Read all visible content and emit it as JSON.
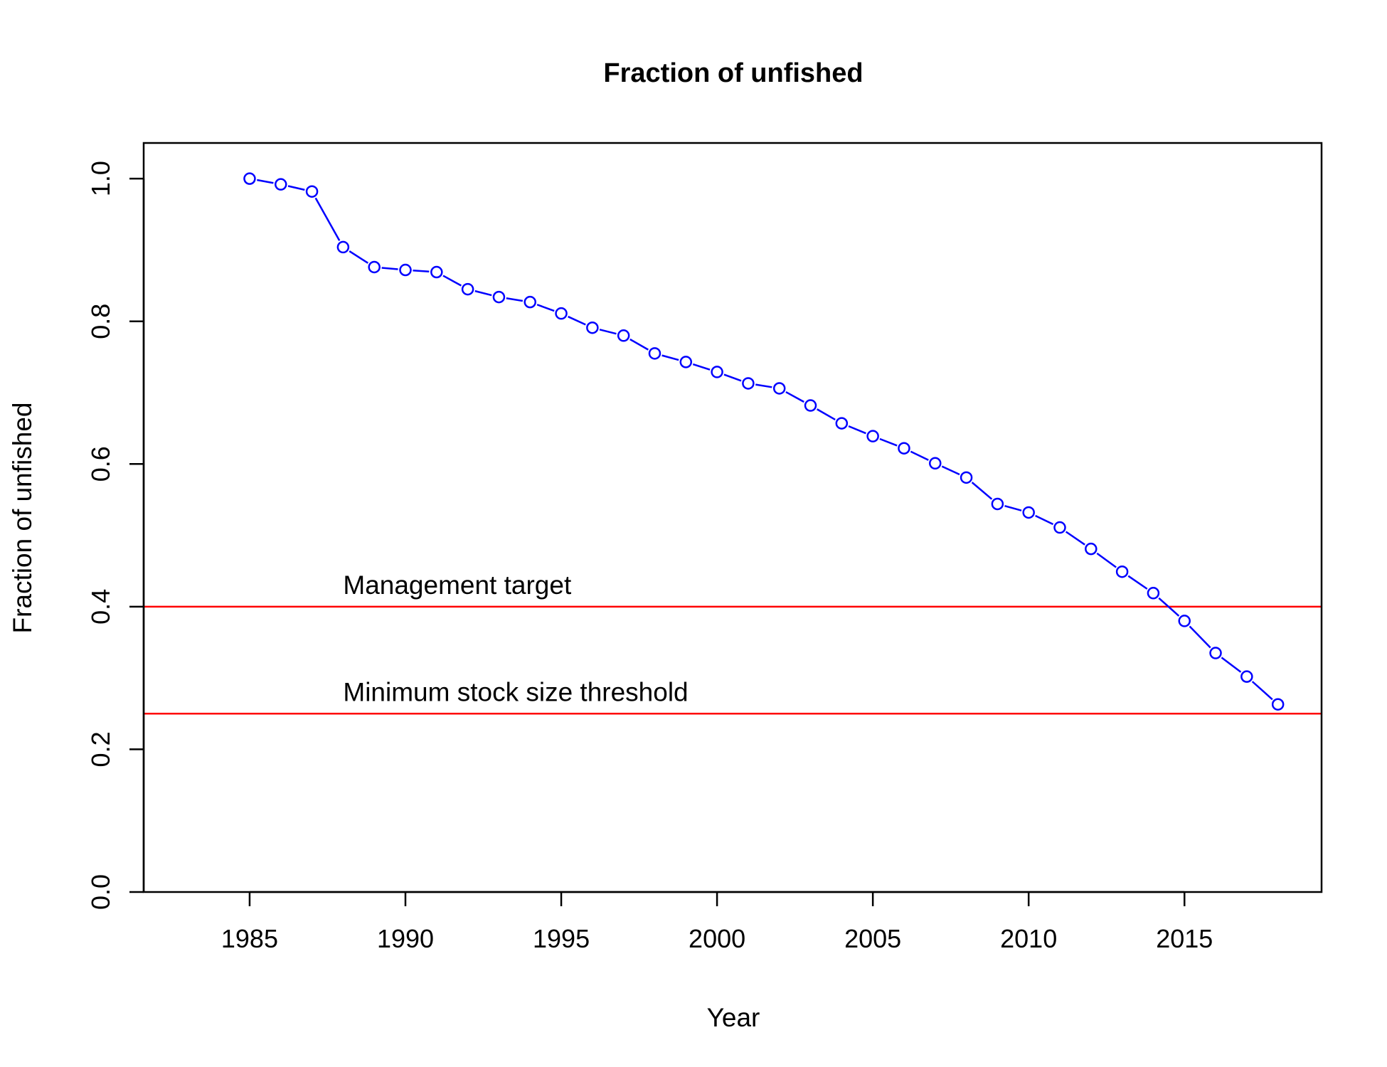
{
  "chart_data": {
    "type": "line",
    "title": "Fraction of unfished",
    "xlabel": "Year",
    "ylabel": "Fraction of unfished",
    "xlim": [
      1981.6,
      2019.4
    ],
    "ylim": [
      0.0,
      1.05
    ],
    "x_ticks": [
      1985,
      1990,
      1995,
      2000,
      2005,
      2010,
      2015
    ],
    "x_tick_labels": [
      "1985",
      "1990",
      "1995",
      "2000",
      "2005",
      "2010",
      "2015"
    ],
    "y_ticks": [
      0.0,
      0.2,
      0.4,
      0.6,
      0.8,
      1.0
    ],
    "y_tick_labels": [
      "0.0",
      "0.2",
      "0.4",
      "0.6",
      "0.8",
      "1.0"
    ],
    "grid": false,
    "legend": "none",
    "series": [
      {
        "color": "#0000ff",
        "marker": "open-circle",
        "x": [
          1985,
          1986,
          1987,
          1988,
          1989,
          1990,
          1991,
          1992,
          1993,
          1994,
          1995,
          1996,
          1997,
          1998,
          1999,
          2000,
          2001,
          2002,
          2003,
          2004,
          2005,
          2006,
          2007,
          2008,
          2009,
          2010,
          2011,
          2012,
          2013,
          2014,
          2015,
          2016,
          2017,
          2018
        ],
        "y": [
          1.0,
          0.992,
          0.982,
          0.904,
          0.876,
          0.872,
          0.869,
          0.845,
          0.834,
          0.827,
          0.811,
          0.791,
          0.78,
          0.755,
          0.743,
          0.729,
          0.713,
          0.706,
          0.682,
          0.657,
          0.639,
          0.622,
          0.601,
          0.581,
          0.544,
          0.532,
          0.511,
          0.481,
          0.449,
          0.419,
          0.38,
          0.335,
          0.302,
          0.263
        ]
      }
    ],
    "reference_lines": [
      {
        "y": 0.4,
        "label": "Management target",
        "color": "#ff0000"
      },
      {
        "y": 0.25,
        "label": "Minimum stock size threshold",
        "color": "#ff0000"
      }
    ]
  }
}
